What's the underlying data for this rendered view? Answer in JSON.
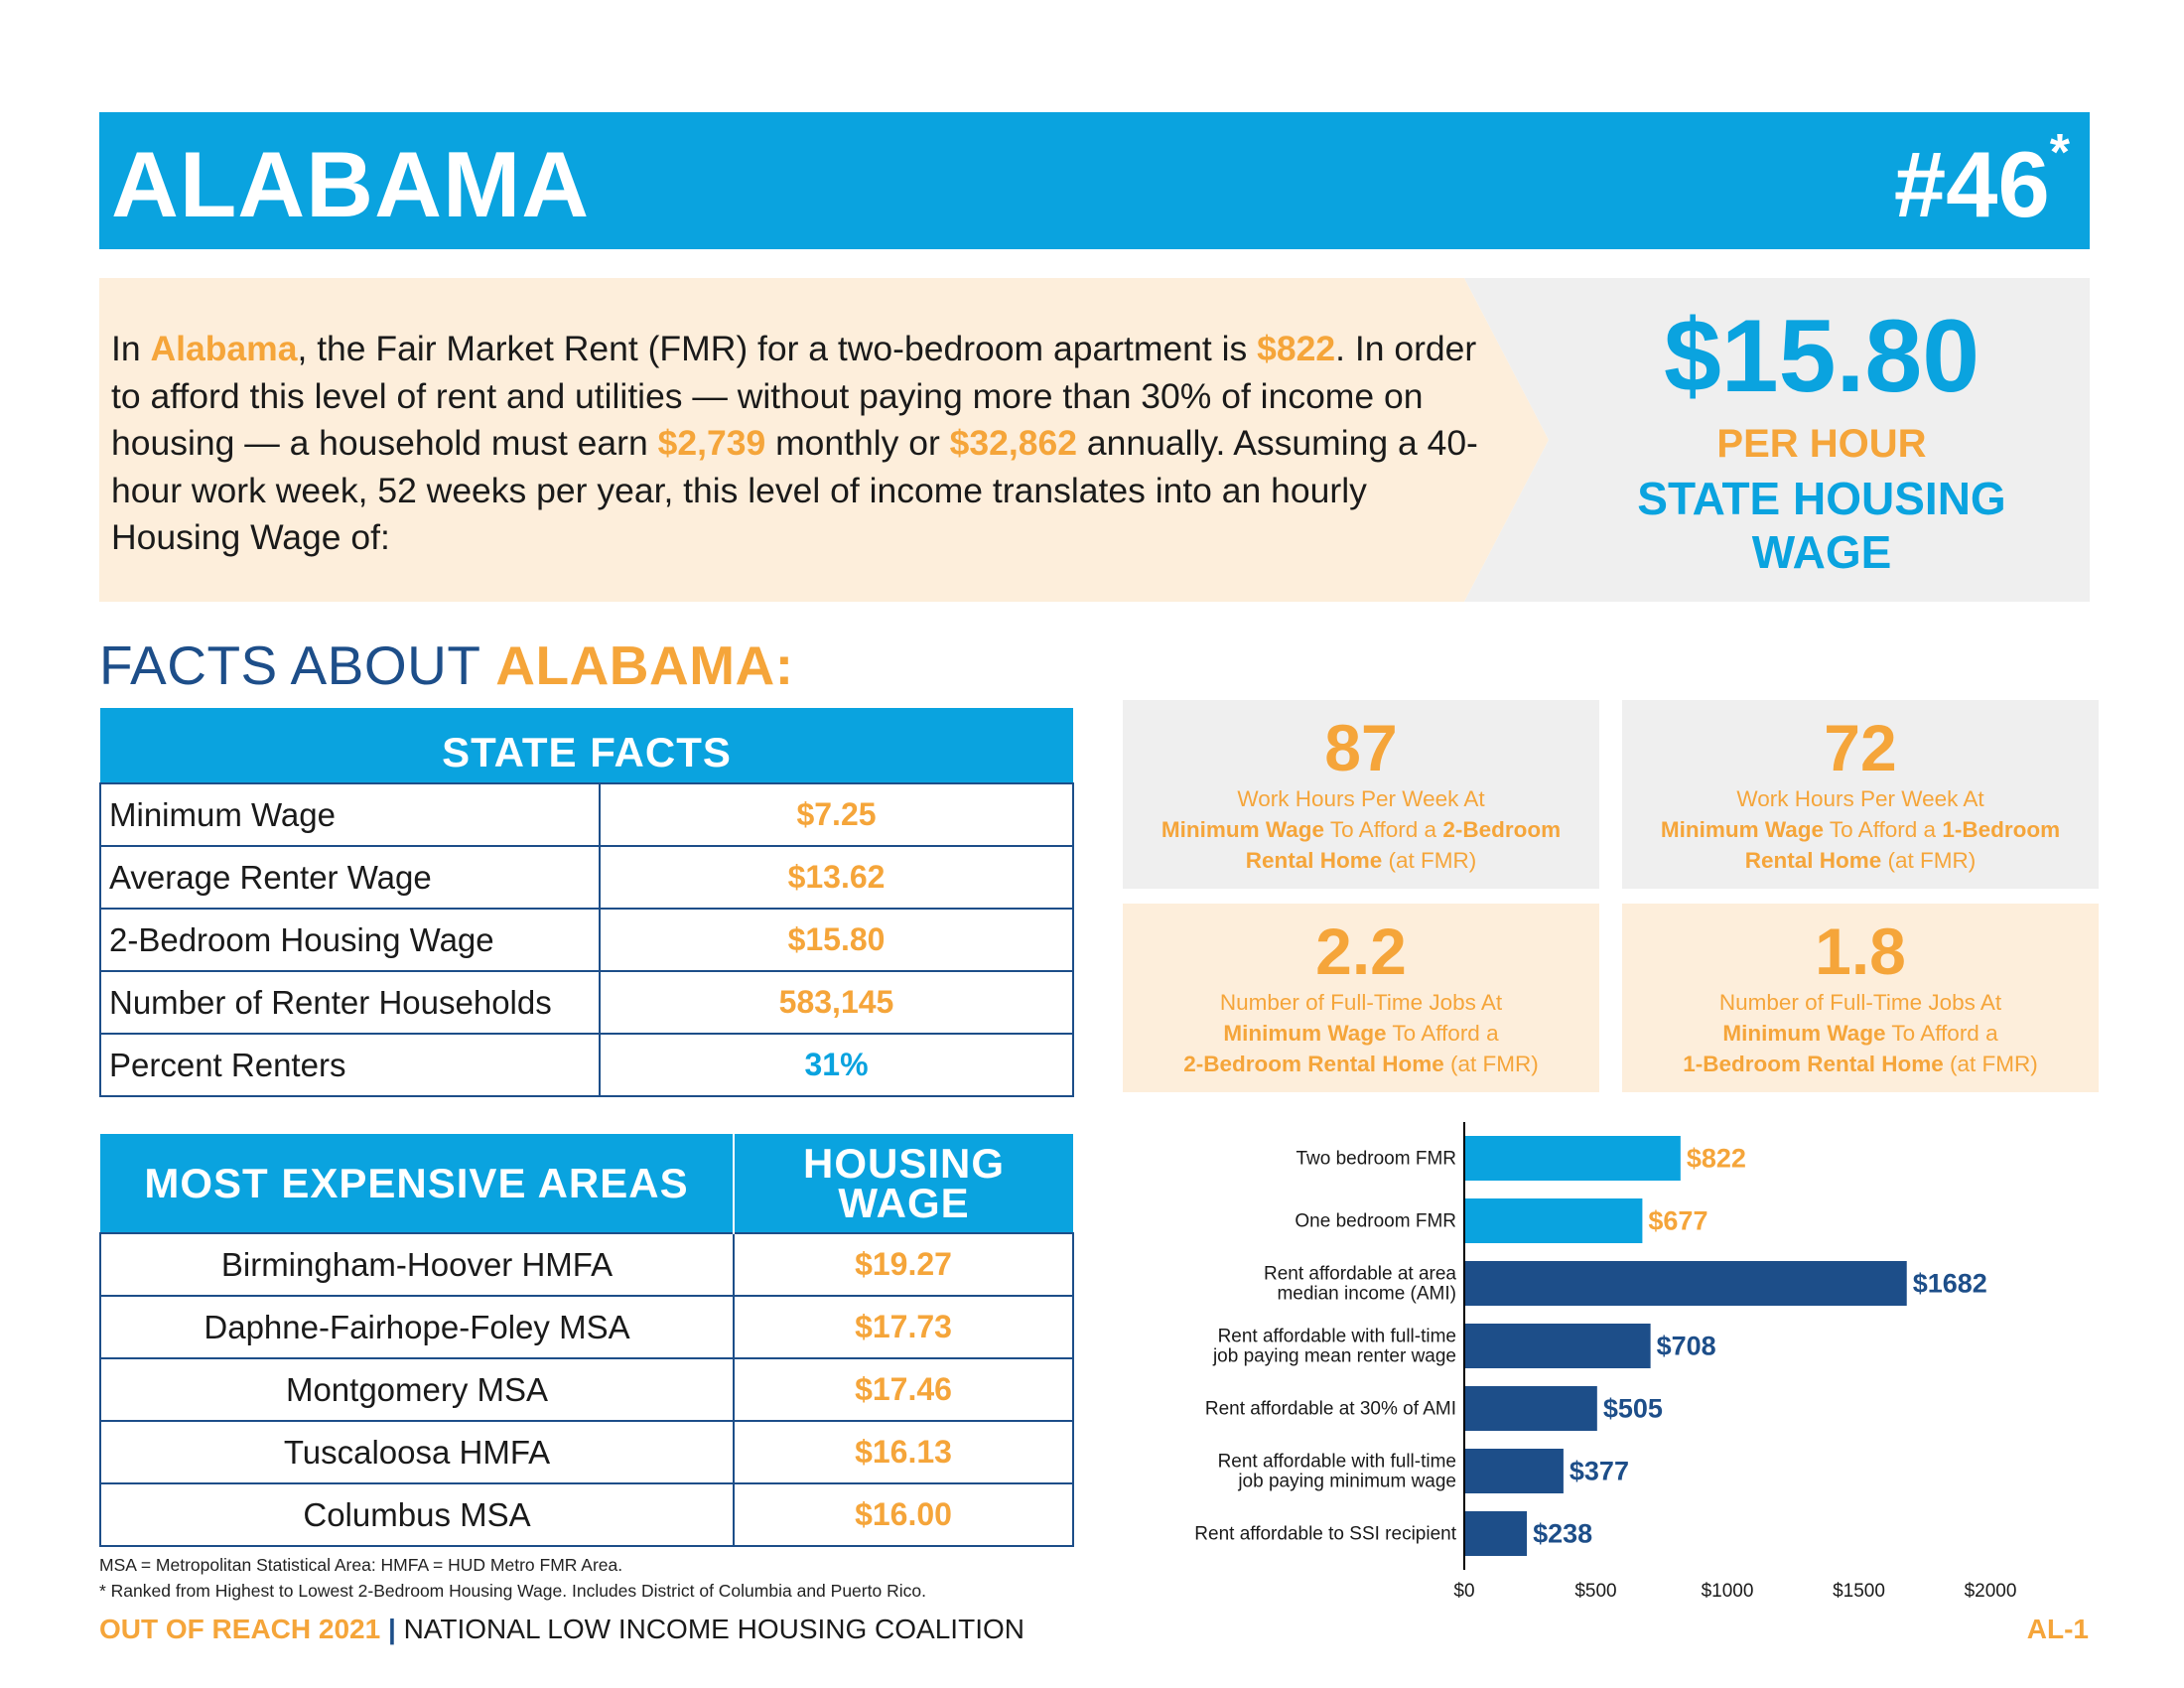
{
  "header": {
    "state": "ALABAMA",
    "rank": "#46",
    "rank_mark": "*"
  },
  "intro": {
    "p1": "In ",
    "state": "Alabama",
    "p2": ", the Fair Market Rent (FMR) for a two-bedroom apartment is ",
    "fmr": "$822",
    "p3": ". In order to afford this level of rent and utilities — without paying more than 30% of income on housing — a household must earn ",
    "monthly": "$2,739",
    "p4": " monthly or ",
    "annual": "$32,862",
    "p5": " annually. Assuming a 40-hour work week, 52 weeks per year, this level of income translates into an hourly Housing Wage of:"
  },
  "housing_wage": {
    "amount": "$15.80",
    "per": "PER HOUR",
    "label_line1": "STATE HOUSING",
    "label_line2": "WAGE"
  },
  "facts_heading": {
    "prefix": "FACTS ABOUT ",
    "state": "ALABAMA:"
  },
  "state_facts": {
    "title": "STATE FACTS",
    "rows": [
      {
        "label": "Minimum Wage",
        "value": "$7.25"
      },
      {
        "label": "Average Renter Wage",
        "value": "$13.62"
      },
      {
        "label": "2-Bedroom Housing Wage",
        "value": "$15.80"
      },
      {
        "label": "Number of Renter Households",
        "value": "583,145"
      },
      {
        "label": "Percent Renters",
        "value": "31%"
      }
    ]
  },
  "expensive_areas": {
    "col1": "MOST EXPENSIVE AREAS",
    "col2_line1": "HOUSING",
    "col2_line2": "WAGE",
    "rows": [
      {
        "area": "Birmingham-Hoover HMFA",
        "wage": "$19.27"
      },
      {
        "area": "Daphne-Fairhope-Foley MSA",
        "wage": "$17.73"
      },
      {
        "area": "Montgomery MSA",
        "wage": "$17.46"
      },
      {
        "area": "Tuscaloosa HMFA",
        "wage": "$16.13"
      },
      {
        "area": "Columbus MSA",
        "wage": "$16.00"
      }
    ]
  },
  "notes": {
    "line1": "MSA = Metropolitan Statistical Area: HMFA = HUD Metro FMR Area.",
    "line2": "* Ranked from Highest to Lowest 2-Bedroom Housing Wage. Includes District of Columbia and Puerto Rico."
  },
  "stats": [
    {
      "num": "87",
      "l1": "Work Hours Per Week At",
      "l2a": "Minimum Wage",
      "l2b": " To Afford a ",
      "l2c": "2-Bedroom",
      "l3a": "Rental Home",
      "l3b": " (at FMR)"
    },
    {
      "num": "72",
      "l1": "Work Hours Per Week At",
      "l2a": "Minimum Wage",
      "l2b": " To Afford a ",
      "l2c": "1-Bedroom",
      "l3a": "Rental Home",
      "l3b": " (at FMR)"
    },
    {
      "num": "2.2",
      "l1": "Number of Full-Time Jobs At",
      "l2a": "Minimum Wage",
      "l2b": " To Afford a",
      "l2c": "",
      "l3a": "2-Bedroom Rental Home",
      "l3b": " (at FMR)"
    },
    {
      "num": "1.8",
      "l1": "Number of Full-Time Jobs At",
      "l2a": "Minimum Wage",
      "l2b": " To Afford a",
      "l2c": "",
      "l3a": "1-Bedroom Rental Home",
      "l3b": " (at FMR)"
    }
  ],
  "chart_data": {
    "type": "bar",
    "orientation": "horizontal",
    "categories": [
      [
        "Two bedroom FMR"
      ],
      [
        "One bedroom FMR"
      ],
      [
        "Rent affordable at area",
        "median income (AMI)"
      ],
      [
        "Rent affordable with full-time",
        "job paying mean renter wage"
      ],
      [
        "Rent affordable at 30% of AMI"
      ],
      [
        "Rent affordable with full-time",
        "job paying minimum wage"
      ],
      [
        "Rent affordable to SSI recipient"
      ]
    ],
    "values": [
      822,
      677,
      1682,
      708,
      505,
      377,
      238
    ],
    "value_labels": [
      "$822",
      "$677",
      "$1682",
      "$708",
      "$505",
      "$377",
      "$238"
    ],
    "bar_colors": [
      "#0aa3df",
      "#0aa3df",
      "#1d4e89",
      "#1d4e89",
      "#1d4e89",
      "#1d4e89",
      "#1d4e89"
    ],
    "label_colors": [
      "#f5a53a",
      "#f5a53a",
      "#1d4e89",
      "#1d4e89",
      "#1d4e89",
      "#1d4e89",
      "#1d4e89"
    ],
    "xlim": [
      0,
      2000
    ],
    "x_ticks": [
      0,
      500,
      1000,
      1500,
      2000
    ],
    "x_tick_labels": [
      "$0",
      "$500",
      "$1000",
      "$1500",
      "$2000"
    ],
    "grid": false
  },
  "footer": {
    "left_a": "OUT OF REACH 2021",
    "left_bar": " | ",
    "left_b": "NATIONAL LOW INCOME HOUSING COALITION",
    "right": "AL-1"
  },
  "colors": {
    "blue": "#0aa3df",
    "navy": "#1d4e89",
    "orange": "#f5a53a",
    "cream": "#fdeedb",
    "gray": "#efefef"
  }
}
